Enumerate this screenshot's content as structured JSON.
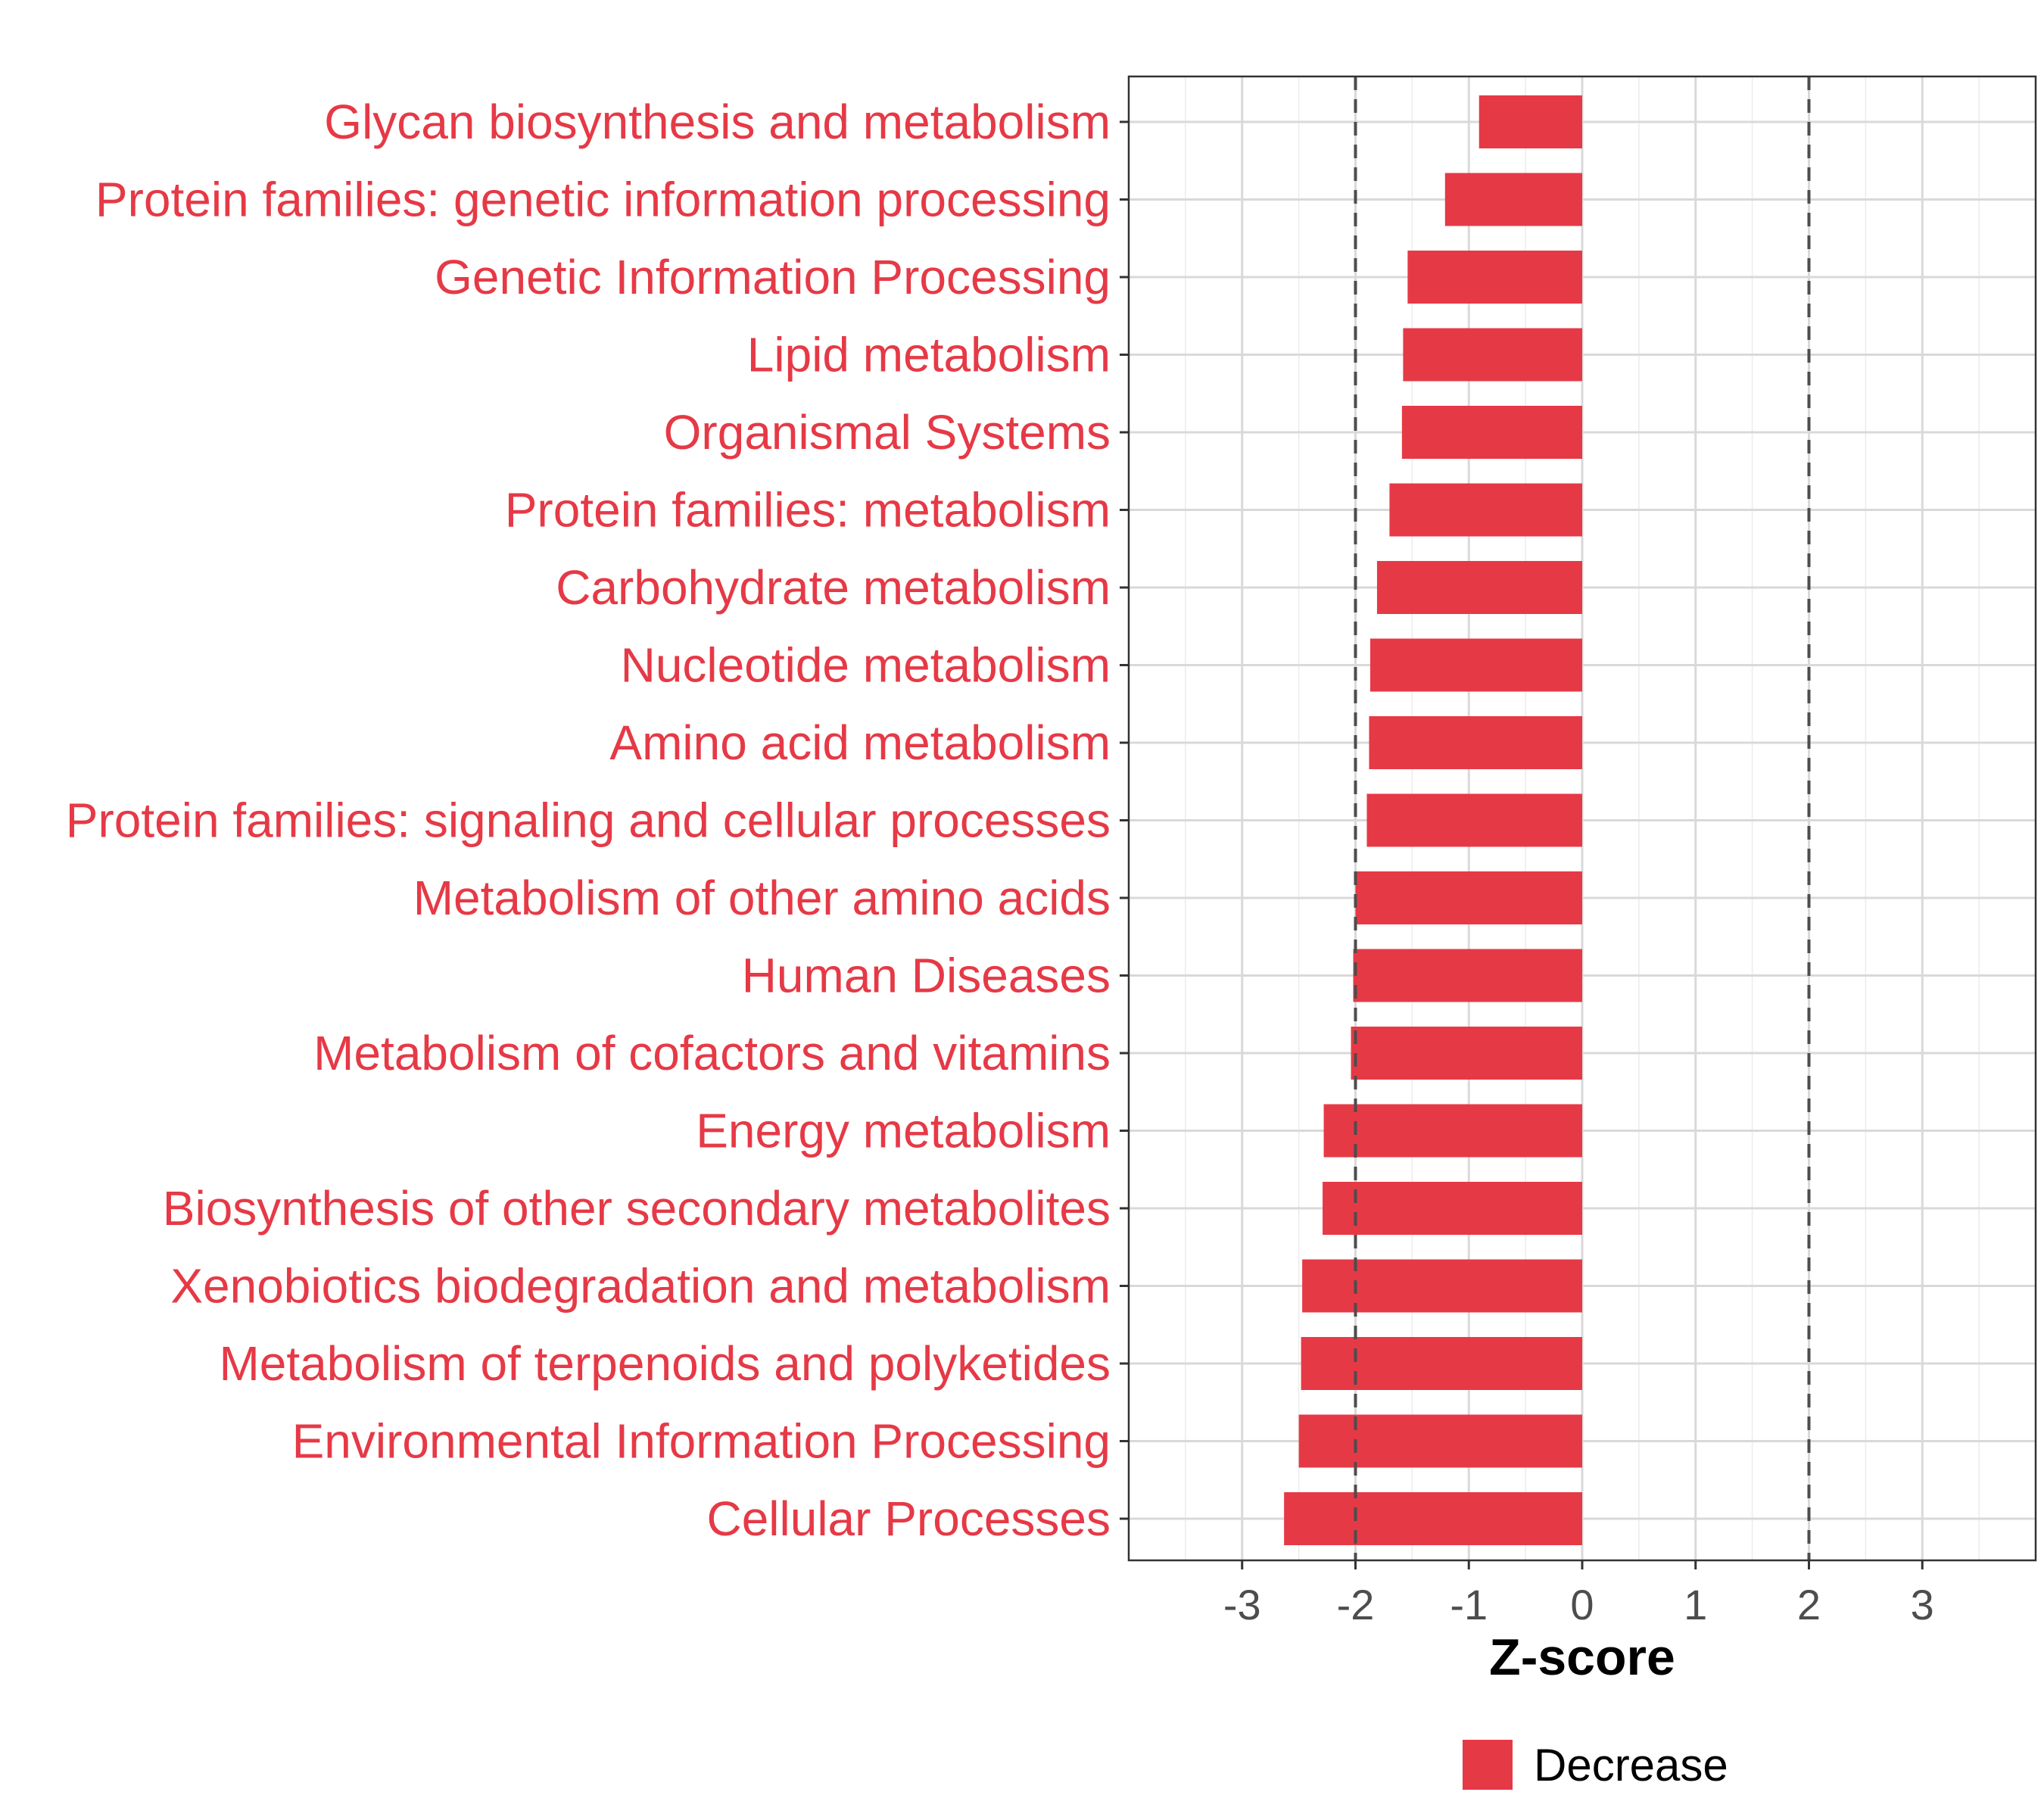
{
  "chart_data": {
    "type": "bar",
    "orientation": "horizontal",
    "categories": [
      "Glycan biosynthesis and metabolism",
      "Protein families: genetic information processing",
      "Genetic Information Processing",
      "Lipid metabolism",
      "Organismal Systems",
      "Protein families: metabolism",
      "Carbohydrate metabolism",
      "Nucleotide metabolism",
      "Amino acid metabolism",
      "Protein families: signaling and cellular processes",
      "Metabolism of other amino acids",
      "Human Diseases",
      "Metabolism of cofactors and vitamins",
      "Energy metabolism",
      "Biosynthesis of other secondary metabolites",
      "Xenobiotics biodegradation and metabolism",
      "Metabolism of terpenoids and polyketides",
      "Environmental Information Processing",
      "Cellular Processes"
    ],
    "values": [
      -0.91,
      -1.21,
      -1.54,
      -1.58,
      -1.59,
      -1.7,
      -1.81,
      -1.87,
      -1.88,
      -1.9,
      -2.0,
      -2.02,
      -2.04,
      -2.28,
      -2.29,
      -2.47,
      -2.48,
      -2.5,
      -2.63
    ],
    "xlabel": "Z-score",
    "xlim": [
      -4,
      4
    ],
    "xticks": [
      -3,
      -2,
      -1,
      0,
      1,
      2,
      3
    ],
    "xtick_labels": [
      "-3",
      "-2",
      "-1",
      "0",
      "1",
      "2",
      "3"
    ],
    "reference_lines": [
      -2,
      2
    ],
    "grid": true,
    "legend": {
      "position": "bottom",
      "entries": [
        {
          "label": "Decrease",
          "color": "#e63946"
        }
      ]
    },
    "colors": {
      "bar": "#e63946",
      "label": "#e63946",
      "grid": "#d9d9d9",
      "reference": "#4d4d4d",
      "tick": "#4d4d4d"
    }
  }
}
